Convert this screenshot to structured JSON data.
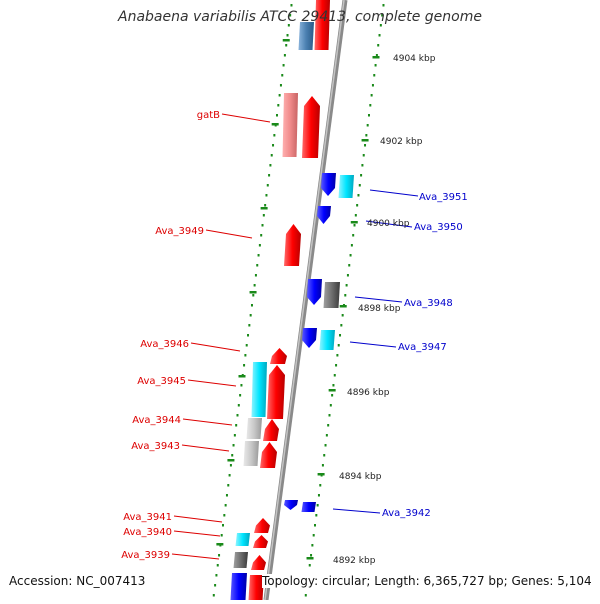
{
  "map": {
    "title": "Anabaena variabilis ATCC 29413, complete genome",
    "accession_text": "Accession: NC_007413",
    "summary_text": "Topology: circular; Length: 6,365,727 bp; Genes: 5,104",
    "colors": {
      "forward_gene": "#ff0000",
      "forward_gene_light": "#f08a8a",
      "reverse_gene": "#0000ff",
      "cds_cyan": "#00e5ff",
      "cds_gray": "#6e6e6e",
      "cds_light_gray": "#c8c8c8",
      "steel_blue": "#4a7fb0",
      "backbone": "#8a8a8a",
      "tick_green": "#1a8a1a",
      "label_red": "#dd0000",
      "label_blue": "#0000cc"
    },
    "scale_labels": [
      "4904 kbp",
      "4902 kbp",
      "4900 kbp",
      "4898 kbp",
      "4896 kbp",
      "4894 kbp",
      "4892 kbp"
    ],
    "left_labels": [
      "gatB",
      "Ava_3949",
      "Ava_3946",
      "Ava_3945",
      "Ava_3944",
      "Ava_3943",
      "Ava_3941",
      "Ava_3940",
      "Ava_3939"
    ],
    "right_labels": [
      "Ava_3951",
      "Ava_3950",
      "Ava_3948",
      "Ava_3947",
      "Ava_3942"
    ]
  }
}
